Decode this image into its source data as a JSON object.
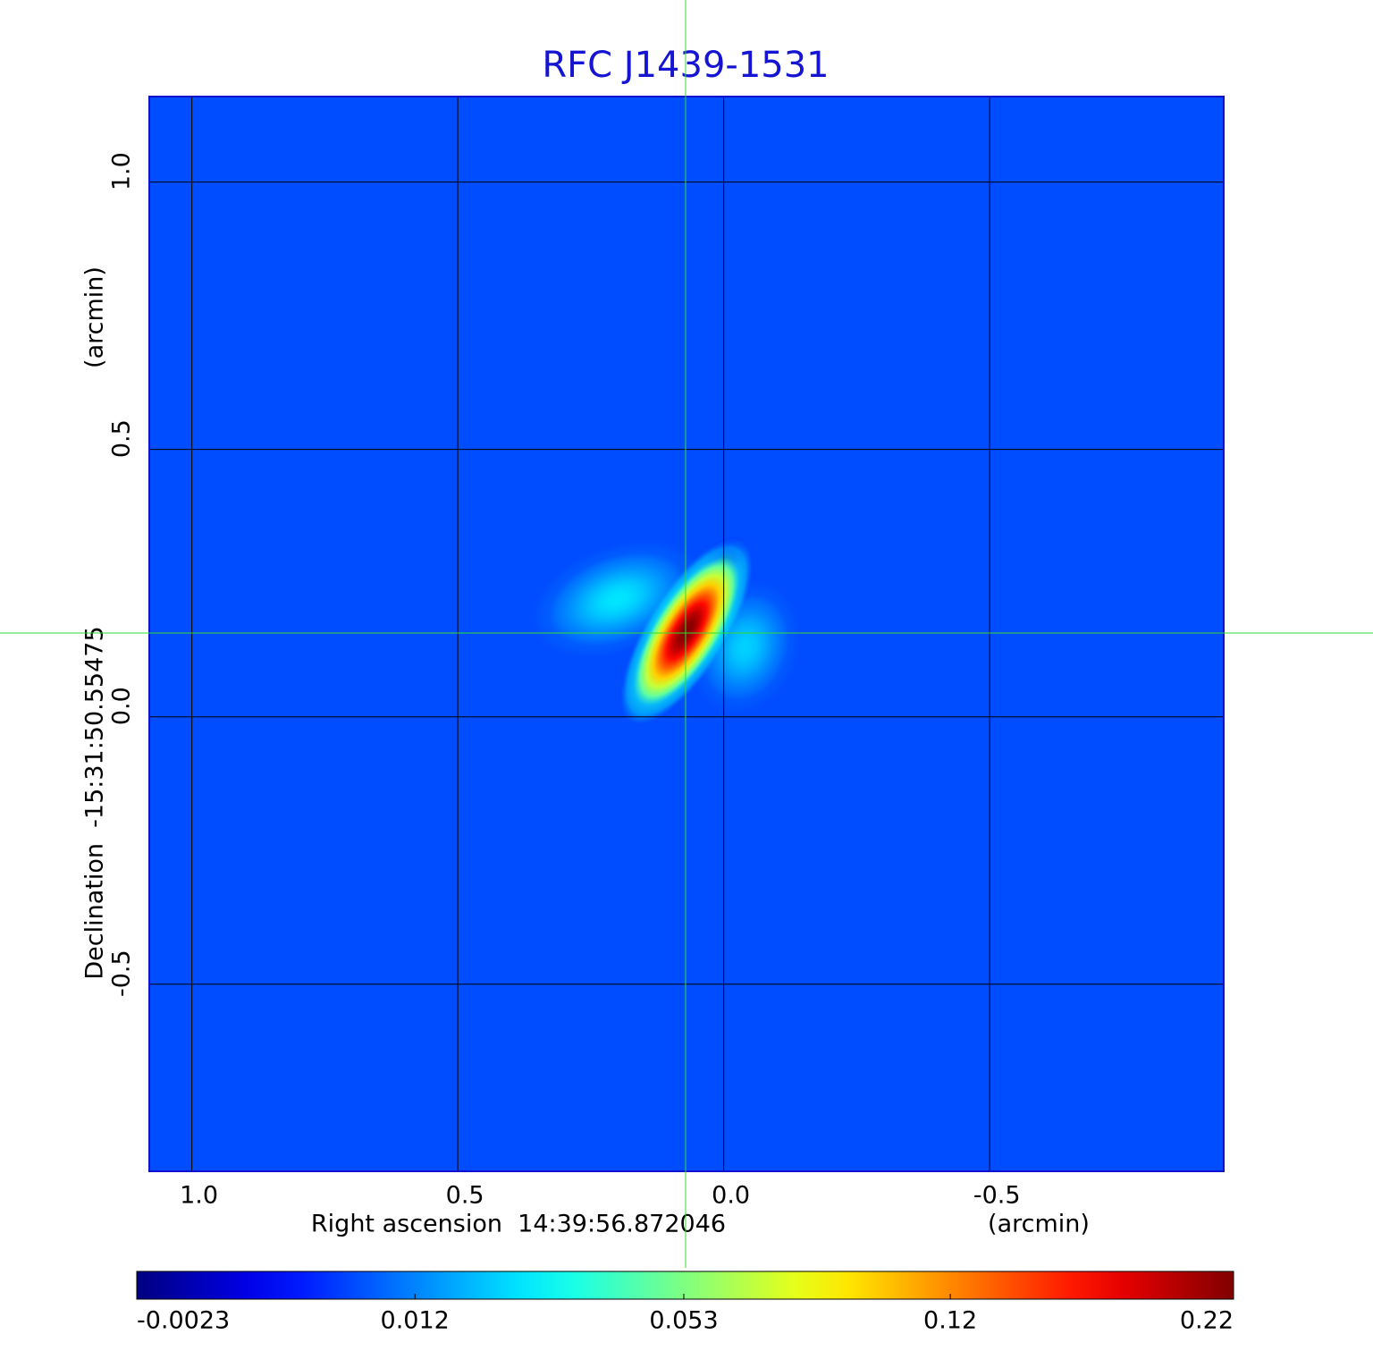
{
  "chart_data": {
    "type": "image",
    "title": "RFC J1439-1531",
    "x_label": "Right ascension  14:39:56.872046",
    "x_unit_label": "(arcmin)",
    "y_label": "Declination  -15:31:50.55475",
    "y_unit_label": "(arcmin)",
    "xlim": [
      1.08,
      -0.94
    ],
    "ylim": [
      -0.85,
      1.16
    ],
    "xticks": [
      {
        "value": 1,
        "label": "1.0"
      },
      {
        "value": 0.5,
        "label": "0.5"
      },
      {
        "value": 0,
        "label": "0.0"
      },
      {
        "value": -0.5,
        "label": "-0.5"
      }
    ],
    "yticks": [
      {
        "value": 1,
        "label": "1.0"
      },
      {
        "value": 0.5,
        "label": "0.5"
      },
      {
        "value": 0,
        "label": "0.0"
      },
      {
        "value": -0.5,
        "label": "-0.5"
      }
    ],
    "grid": true,
    "colormap": "jet",
    "background": 0.0066,
    "components": [
      {
        "x": 0.2,
        "y": 0.22,
        "peak": 0.025,
        "major": 0.17,
        "minor": 0.1,
        "angle": 20
      },
      {
        "x": -0.04,
        "y": 0.13,
        "peak": 0.022,
        "major": 0.13,
        "minor": 0.1,
        "angle": 70
      },
      {
        "x": 0.0,
        "y": 0.29,
        "peak": -0.0023,
        "major": 0.06,
        "minor": 0.04,
        "angle": 45
      },
      {
        "x": 0.07,
        "y": 0.16,
        "peak": 0.22,
        "major": 0.2,
        "minor": 0.075,
        "angle": 58
      }
    ],
    "colorbar": {
      "lim": [
        -0.0023,
        0.22
      ],
      "scale": "sqrt",
      "ticks": [
        -0.0023,
        0.012,
        0.053,
        0.12,
        0.22
      ]
    }
  }
}
